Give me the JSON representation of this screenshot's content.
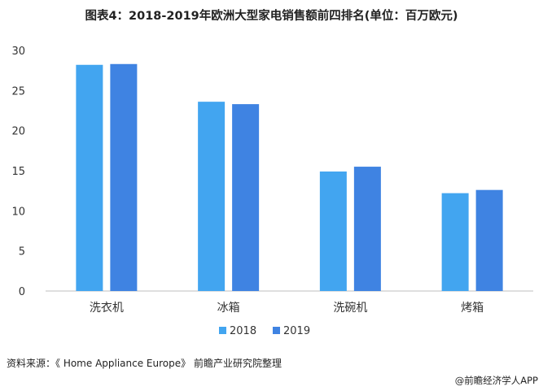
{
  "title": "图表4：2018-2019年欧洲大型家电销售额前四排名(单位：百万欧元)",
  "source": "资料来源：《 Home Appliance Europe》 前瞻产业研究院整理",
  "credit": "@前瞻经济学人APP",
  "colors": {
    "series2018": "#42a5f0",
    "series2019": "#3f83e2",
    "axis": "#bfbfbf",
    "text": "#333333"
  },
  "chart_data": {
    "type": "bar",
    "categories": [
      "洗衣机",
      "冰箱",
      "洗碗机",
      "烤箱"
    ],
    "series": [
      {
        "name": "2018",
        "values": [
          28.2,
          23.6,
          14.9,
          12.2
        ]
      },
      {
        "name": "2019",
        "values": [
          28.3,
          23.3,
          15.5,
          12.6
        ]
      }
    ],
    "yticks": [
      0,
      5,
      10,
      15,
      20,
      25,
      30
    ],
    "ylim": [
      0,
      30
    ],
    "grid": false,
    "legend": "bottom-center"
  }
}
